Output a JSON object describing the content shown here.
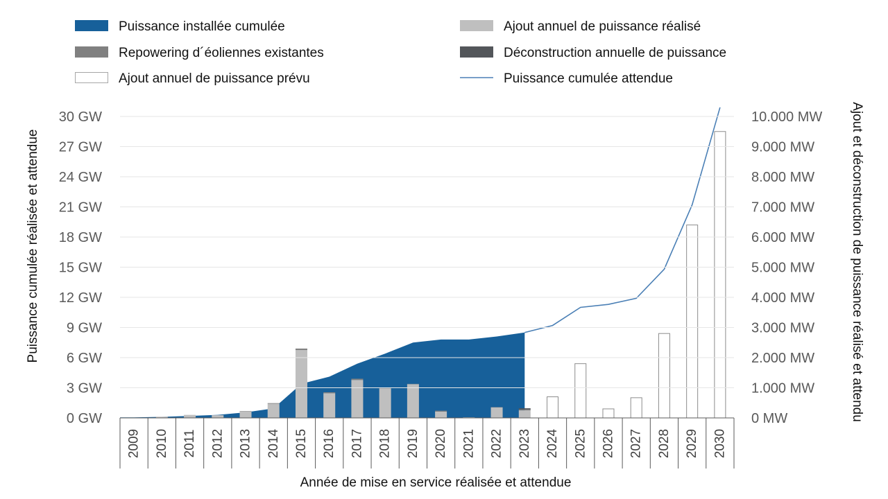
{
  "chart_data": {
    "type": "bar+area+line",
    "title": "",
    "xlabel": "Année de mise en service réalisée et attendue",
    "ylabel_left": "Puissance cumulée réalisée et attendue",
    "ylabel_right": "Ajout et déconstruction de puissance réalisé et attendu",
    "y_left_range": [
      0,
      30
    ],
    "y_right_range": [
      0,
      10000
    ],
    "y_left_ticks": [
      "0 GW",
      "3 GW",
      "6 GW",
      "9 GW",
      "12 GW",
      "15 GW",
      "18 GW",
      "21 GW",
      "24 GW",
      "27 GW",
      "30 GW"
    ],
    "y_right_ticks": [
      "0 MW",
      "1.000 MW",
      "2.000 MW",
      "3.000 MW",
      "4.000 MW",
      "5.000 MW",
      "6.000 MW",
      "7.000 MW",
      "8.000 MW",
      "9.000 MW",
      "10.000 MW"
    ],
    "categories": [
      "2009",
      "2010",
      "2011",
      "2012",
      "2013",
      "2014",
      "2015",
      "2016",
      "2017",
      "2018",
      "2019",
      "2020",
      "2021",
      "2022",
      "2023",
      "2024",
      "2025",
      "2026",
      "2027",
      "2028",
      "2029",
      "2030"
    ],
    "series": [
      {
        "name": "Puissance installée cumulée",
        "axis": "left",
        "color": "#17609a",
        "values": [
          0.05,
          0.1,
          0.2,
          0.3,
          0.55,
          0.95,
          3.4,
          4.1,
          5.4,
          6.4,
          7.5,
          7.8,
          7.8,
          8.1,
          8.5,
          null,
          null,
          null,
          null,
          null,
          null,
          null
        ]
      },
      {
        "name": "Ajout annuel de puissance réalisé",
        "axis": "right",
        "color": "#bfbfbf",
        "values": [
          5,
          40,
          100,
          90,
          220,
          470,
          2250,
          820,
          1260,
          980,
          1120,
          210,
          20,
          350,
          250,
          null,
          null,
          null,
          null,
          null,
          null,
          null
        ]
      },
      {
        "name": "Repowering d´éoliennes existantes",
        "axis": "right",
        "color": "#808080",
        "values": [
          0,
          0,
          0,
          0,
          10,
          20,
          50,
          30,
          40,
          20,
          10,
          30,
          0,
          10,
          30,
          null,
          null,
          null,
          null,
          null,
          null,
          null
        ]
      },
      {
        "name": "Déconstruction annuelle de puissance",
        "axis": "right",
        "color": "#53565a",
        "values": [
          0,
          0,
          0,
          0,
          0,
          0,
          0,
          0,
          0,
          0,
          0,
          0,
          0,
          0,
          40,
          null,
          null,
          null,
          null,
          null,
          null,
          null
        ]
      },
      {
        "name": "Ajout annuel de puissance prévu",
        "axis": "right",
        "color": "#ffffff",
        "values": [
          null,
          null,
          null,
          null,
          null,
          null,
          null,
          null,
          null,
          null,
          null,
          null,
          null,
          null,
          null,
          700,
          1800,
          300,
          670,
          2800,
          6400,
          9500
        ]
      },
      {
        "name": "Puissance cumulée attendue",
        "axis": "left",
        "color": "#4a7fb5",
        "values": [
          null,
          null,
          null,
          null,
          null,
          null,
          null,
          null,
          null,
          null,
          null,
          null,
          null,
          null,
          8.5,
          9.2,
          11.0,
          11.3,
          11.9,
          14.8,
          21.2,
          30.9
        ]
      }
    ],
    "legend": [
      {
        "label": "Puissance installée cumulée",
        "type": "fill",
        "color": "#17609a"
      },
      {
        "label": "Ajout annuel de puissance réalisé",
        "type": "fill",
        "color": "#bfbfbf"
      },
      {
        "label": "Repowering d´éoliennes existantes",
        "type": "fill",
        "color": "#808080"
      },
      {
        "label": "Déconstruction annuelle de puissance",
        "type": "fill",
        "color": "#53565a"
      },
      {
        "label": "Ajout annuel de puissance prévu",
        "type": "outline",
        "color": "#ffffff"
      },
      {
        "label": "Puissance cumulée attendue",
        "type": "line",
        "color": "#4a7fb5"
      }
    ],
    "legend_position": "top"
  }
}
